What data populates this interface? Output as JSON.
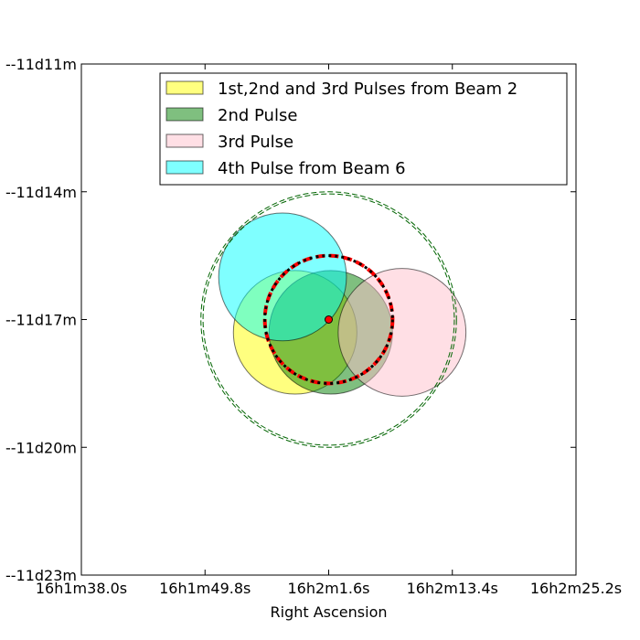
{
  "chart_data": {
    "type": "scatter",
    "xlabel": "Right Ascension",
    "ylabel": "",
    "x_axis": {
      "ticks_sec": [
        0,
        11.8,
        23.6,
        35.4,
        47.2
      ],
      "tick_labels": [
        "16h1m38.0s",
        "16h1m49.8s",
        "16h2m1.6s",
        "16h2m13.4s",
        "16h2m25.2s"
      ]
    },
    "y_axis": {
      "ticks_arcmin": [
        11,
        14,
        17,
        20,
        23
      ],
      "tick_labels": [
        "--11d11m",
        "--11d14m",
        "--11d17m",
        "--11d20m",
        "--11d23m"
      ]
    },
    "xlim_sec": [
      0,
      47.2
    ],
    "ylim_arcmin": [
      11,
      23
    ],
    "legend": {
      "placement": "upper-right",
      "entries": [
        {
          "label": "1st,2nd and 3rd  Pulses from Beam 2",
          "color": "#ffff00"
        },
        {
          "label": "2nd Pulse",
          "color": "#008000"
        },
        {
          "label": "3rd Pulse",
          "color": "#ffc0cb"
        },
        {
          "label": "4th Pulse from Beam 6",
          "color": "#00ffff"
        }
      ]
    },
    "regions": [
      {
        "name": "1st,2nd and 3rd  Pulses from Beam 2",
        "ra_sec": 20.4,
        "dec_arcmin": 17.3,
        "radius_arcmin": 1.45,
        "fill": "#ffff00",
        "opacity": 0.5
      },
      {
        "name": "2nd Pulse",
        "ra_sec": 23.8,
        "dec_arcmin": 17.3,
        "radius_arcmin": 1.45,
        "fill": "#008000",
        "opacity": 0.5
      },
      {
        "name": "3rd Pulse",
        "ra_sec": 30.6,
        "dec_arcmin": 17.3,
        "radius_arcmin": 1.5,
        "fill": "#ffc0cb",
        "opacity": 0.5
      },
      {
        "name": "4th Pulse from Beam 6",
        "ra_sec": 19.2,
        "dec_arcmin": 16.0,
        "radius_arcmin": 1.5,
        "fill": "#00ffff",
        "opacity": 0.5
      }
    ],
    "outline_circles": [
      {
        "ra_sec": 23.6,
        "dec_arcmin": 17.0,
        "radius_arcmin": 2.95,
        "style": "dashed",
        "color": "#006400"
      },
      {
        "ra_sec": 23.6,
        "dec_arcmin": 17.0,
        "radius_arcmin": 3.0,
        "style": "dashed",
        "color": "#006400"
      },
      {
        "ra_sec": 23.6,
        "dec_arcmin": 17.0,
        "radius_arcmin": 1.5,
        "style": "dashed",
        "color": "#ff0000"
      },
      {
        "ra_sec": 23.6,
        "dec_arcmin": 17.0,
        "radius_arcmin": 1.5,
        "style": "dotted",
        "color": "#000000"
      }
    ],
    "center_point": {
      "ra_sec": 23.6,
      "dec_arcmin": 17.0,
      "color": "#ff0000"
    },
    "grid": false
  }
}
